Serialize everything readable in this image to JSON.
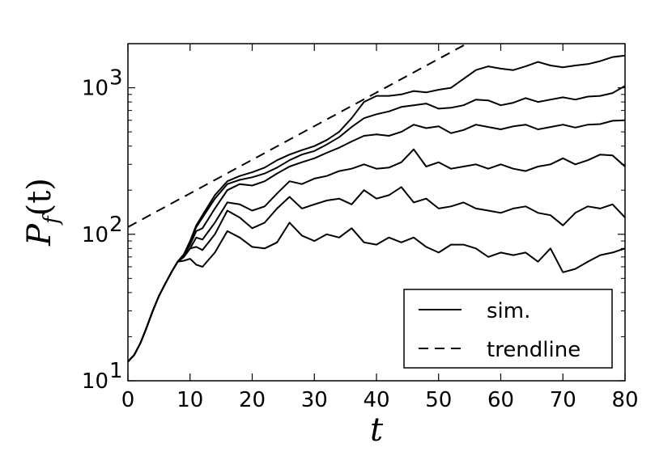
{
  "chart_data": {
    "type": "line",
    "xlabel": "t",
    "ylabel": "P_f(t)",
    "ylabel_main": "P",
    "ylabel_sub": "f",
    "ylabel_arg": "(t)",
    "xlim": [
      0,
      80
    ],
    "ylim": [
      10,
      2000
    ],
    "yscale": "log",
    "grid": false,
    "legend_placement": "lower-right",
    "x_ticks": [
      0,
      10,
      20,
      30,
      40,
      50,
      60,
      70,
      80
    ],
    "x_tick_labels": [
      "0",
      "10",
      "20",
      "30",
      "40",
      "50",
      "60",
      "70",
      "80"
    ],
    "y_ticks": [
      10,
      100,
      1000
    ],
    "y_tick_labels": [
      {
        "base": "10",
        "exp": "1"
      },
      {
        "base": "10",
        "exp": "2"
      },
      {
        "base": "10",
        "exp": "3"
      }
    ],
    "legend": [
      {
        "label": "sim.",
        "style": "solid"
      },
      {
        "label": "trendline",
        "style": "dashed"
      }
    ],
    "trendline": {
      "x": [
        0,
        55
      ],
      "y": [
        112,
        2050
      ]
    },
    "series": [
      {
        "style": "solid",
        "x": [
          0,
          1,
          2,
          3,
          4,
          5,
          6,
          7,
          8,
          9,
          10,
          11,
          12,
          14,
          16,
          18,
          20,
          22,
          24,
          26,
          28,
          30,
          32,
          34,
          36,
          38,
          40,
          42,
          44,
          46,
          48,
          50,
          52,
          54,
          56,
          58,
          60,
          62,
          64,
          66,
          68,
          70,
          72,
          74,
          76,
          78,
          80
        ],
        "y": [
          13.5,
          15,
          18,
          23,
          30,
          38,
          46,
          55,
          65,
          66,
          68,
          62,
          60,
          75,
          105,
          95,
          82,
          80,
          88,
          120,
          98,
          90,
          100,
          95,
          110,
          88,
          85,
          95,
          88,
          95,
          82,
          75,
          85,
          85,
          80,
          70,
          75,
          72,
          75,
          65,
          80,
          55,
          58,
          65,
          72,
          75,
          80
        ]
      },
      {
        "style": "solid",
        "x": [
          0,
          1,
          2,
          3,
          4,
          5,
          6,
          7,
          8,
          9,
          10,
          11,
          12,
          14,
          16,
          18,
          20,
          22,
          24,
          26,
          28,
          30,
          32,
          34,
          36,
          38,
          40,
          42,
          44,
          46,
          48,
          50,
          52,
          54,
          56,
          58,
          60,
          62,
          64,
          66,
          68,
          70,
          72,
          74,
          76,
          78,
          80
        ],
        "y": [
          13.5,
          15,
          18,
          23,
          30,
          38,
          46,
          55,
          65,
          70,
          80,
          82,
          78,
          100,
          145,
          130,
          110,
          120,
          150,
          180,
          150,
          160,
          170,
          175,
          160,
          200,
          175,
          185,
          210,
          165,
          175,
          150,
          155,
          165,
          150,
          145,
          140,
          150,
          155,
          140,
          135,
          115,
          140,
          155,
          150,
          160,
          130
        ]
      },
      {
        "style": "solid",
        "x": [
          0,
          1,
          2,
          3,
          4,
          5,
          6,
          7,
          8,
          9,
          10,
          11,
          12,
          14,
          16,
          18,
          20,
          22,
          24,
          26,
          28,
          30,
          32,
          34,
          36,
          38,
          40,
          42,
          44,
          46,
          48,
          50,
          52,
          54,
          56,
          58,
          60,
          62,
          64,
          66,
          68,
          70,
          72,
          74,
          76,
          78,
          80
        ],
        "y": [
          13.5,
          15,
          18,
          23,
          30,
          38,
          46,
          55,
          65,
          70,
          80,
          95,
          92,
          120,
          165,
          160,
          145,
          155,
          190,
          230,
          220,
          240,
          250,
          270,
          280,
          300,
          280,
          285,
          310,
          380,
          290,
          310,
          280,
          290,
          300,
          280,
          300,
          280,
          270,
          290,
          300,
          330,
          300,
          320,
          350,
          345,
          290
        ]
      },
      {
        "style": "solid",
        "x": [
          0,
          1,
          2,
          3,
          4,
          5,
          6,
          7,
          8,
          9,
          10,
          11,
          12,
          14,
          16,
          18,
          20,
          22,
          24,
          26,
          28,
          30,
          32,
          34,
          36,
          38,
          40,
          42,
          44,
          46,
          48,
          50,
          52,
          54,
          56,
          58,
          60,
          62,
          64,
          66,
          68,
          70,
          72,
          74,
          76,
          78,
          80
        ],
        "y": [
          13.5,
          15,
          18,
          23,
          30,
          38,
          46,
          55,
          65,
          72,
          85,
          105,
          110,
          150,
          200,
          220,
          215,
          230,
          260,
          290,
          310,
          330,
          360,
          390,
          430,
          470,
          480,
          470,
          500,
          560,
          530,
          545,
          490,
          515,
          560,
          540,
          520,
          545,
          560,
          520,
          540,
          560,
          535,
          560,
          565,
          595,
          600
        ]
      },
      {
        "style": "solid",
        "x": [
          0,
          1,
          2,
          3,
          4,
          5,
          6,
          7,
          8,
          9,
          10,
          11,
          12,
          14,
          16,
          18,
          20,
          22,
          24,
          26,
          28,
          30,
          32,
          34,
          36,
          38,
          40,
          42,
          44,
          46,
          48,
          50,
          52,
          54,
          56,
          58,
          60,
          62,
          64,
          66,
          68,
          70,
          72,
          74,
          76,
          78,
          80
        ],
        "y": [
          13.5,
          15,
          18,
          23,
          30,
          38,
          46,
          55,
          65,
          72,
          88,
          112,
          130,
          175,
          220,
          235,
          245,
          260,
          285,
          320,
          350,
          370,
          410,
          460,
          540,
          620,
          660,
          690,
          740,
          760,
          780,
          720,
          730,
          760,
          830,
          820,
          760,
          790,
          850,
          800,
          830,
          860,
          830,
          870,
          880,
          920,
          1030
        ]
      },
      {
        "style": "solid",
        "x": [
          0,
          1,
          2,
          3,
          4,
          5,
          6,
          7,
          8,
          9,
          10,
          11,
          12,
          14,
          16,
          18,
          20,
          22,
          24,
          26,
          28,
          30,
          32,
          34,
          36,
          38,
          40,
          42,
          44,
          46,
          48,
          50,
          52,
          54,
          56,
          58,
          60,
          62,
          64,
          66,
          68,
          70,
          72,
          74,
          76,
          78,
          80
        ],
        "y": [
          13.5,
          15,
          18,
          23,
          30,
          38,
          46,
          55,
          65,
          73,
          90,
          115,
          135,
          185,
          230,
          250,
          265,
          285,
          320,
          350,
          375,
          400,
          440,
          500,
          620,
          800,
          880,
          880,
          900,
          950,
          930,
          970,
          1000,
          1150,
          1320,
          1400,
          1350,
          1320,
          1400,
          1500,
          1420,
          1380,
          1420,
          1450,
          1520,
          1620,
          1660
        ]
      }
    ]
  }
}
